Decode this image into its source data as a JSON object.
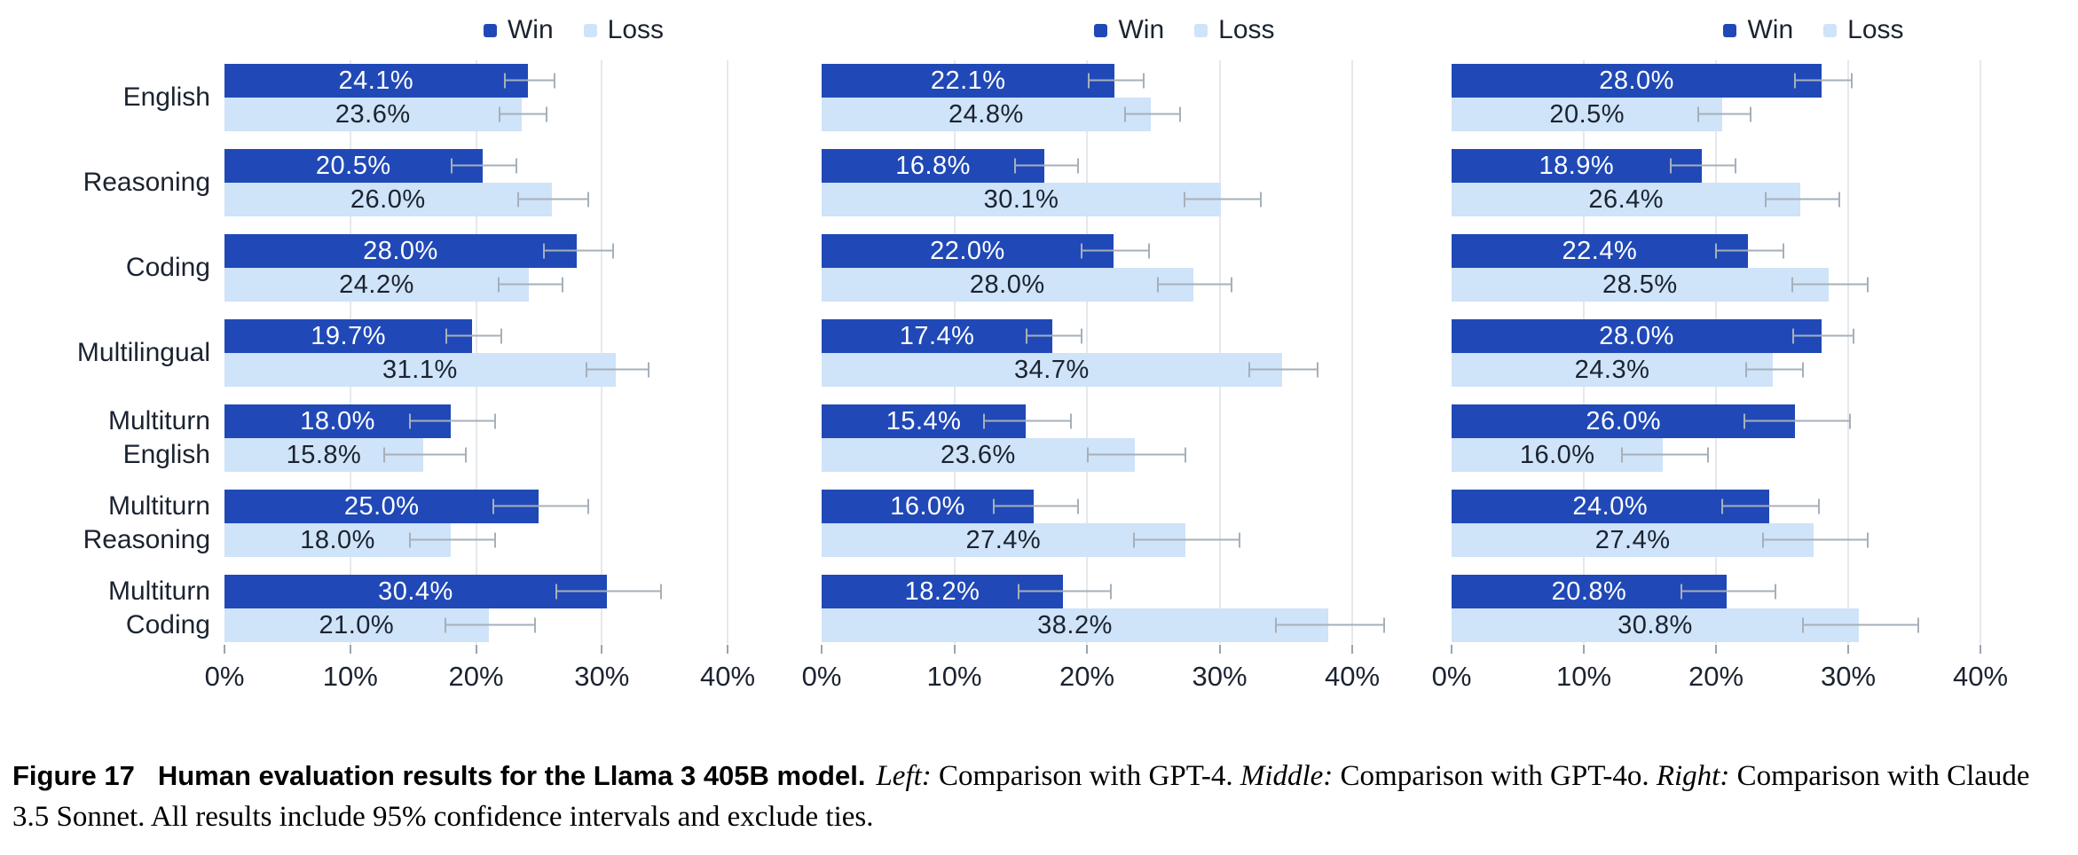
{
  "colors": {
    "win": "#2049b7",
    "loss": "#cfe3f9",
    "error_bar": "#a6b0ba",
    "gridline": "#e5e8ec",
    "text": "#1b2330",
    "value_on_win": "#ffffff",
    "value_on_loss": "#1b2330"
  },
  "figure": {
    "caption": {
      "label": "Figure 17",
      "title": "Human evaluation results for the Llama 3 405B model.",
      "segments": [
        {
          "italic": true,
          "text": "Left:"
        },
        {
          "italic": false,
          "text": " Comparison with GPT-4. "
        },
        {
          "italic": true,
          "text": "Middle:"
        },
        {
          "italic": false,
          "text": " Comparison with GPT-4o. "
        },
        {
          "italic": true,
          "text": "Right:"
        },
        {
          "italic": false,
          "text": " Comparison with Claude 3.5 Sonnet. All results include 95% confidence intervals and exclude ties."
        }
      ]
    }
  },
  "chart_data": [
    {
      "type": "bar",
      "orientation": "horizontal",
      "position": "left",
      "comparison": "GPT-4",
      "legend": [
        "Win",
        "Loss"
      ],
      "legend_position": "top",
      "grid": true,
      "show_category_labels": true,
      "categories": [
        [
          "English"
        ],
        [
          "Reasoning"
        ],
        [
          "Coding"
        ],
        [
          "Multilingual"
        ],
        [
          "Multiturn",
          "English"
        ],
        [
          "Multiturn",
          "Reasoning"
        ],
        [
          "Multiturn",
          "Coding"
        ]
      ],
      "xlim": [
        0,
        40
      ],
      "xticks": [
        0,
        10,
        20,
        30,
        40
      ],
      "xtick_labels": [
        "0%",
        "10%",
        "20%",
        "30%",
        "40%"
      ],
      "series": [
        {
          "name": "Win",
          "values": [
            24.1,
            20.5,
            28.0,
            19.7,
            18.0,
            25.0,
            30.4
          ],
          "ci": [
            1.9,
            2.5,
            2.7,
            2.1,
            3.3,
            3.7,
            4.1
          ]
        },
        {
          "name": "Loss",
          "values": [
            23.6,
            26.0,
            24.2,
            31.1,
            15.8,
            18.0,
            21.0
          ],
          "ci": [
            1.8,
            2.7,
            2.5,
            2.4,
            3.2,
            3.3,
            3.5
          ]
        }
      ]
    },
    {
      "type": "bar",
      "orientation": "horizontal",
      "position": "middle",
      "comparison": "GPT-4o",
      "legend": [
        "Win",
        "Loss"
      ],
      "legend_position": "top",
      "grid": true,
      "show_category_labels": false,
      "categories": [
        [
          "English"
        ],
        [
          "Reasoning"
        ],
        [
          "Coding"
        ],
        [
          "Multilingual"
        ],
        [
          "Multiturn",
          "English"
        ],
        [
          "Multiturn",
          "Reasoning"
        ],
        [
          "Multiturn",
          "Coding"
        ]
      ],
      "xlim": [
        0,
        40
      ],
      "xticks": [
        0,
        10,
        20,
        30,
        40
      ],
      "xtick_labels": [
        "0%",
        "10%",
        "20%",
        "30%",
        "40%"
      ],
      "series": [
        {
          "name": "Win",
          "values": [
            22.1,
            16.8,
            22.0,
            17.4,
            15.4,
            16.0,
            18.2
          ],
          "ci": [
            2.0,
            2.3,
            2.5,
            2.0,
            3.2,
            3.1,
            3.4
          ]
        },
        {
          "name": "Loss",
          "values": [
            24.8,
            30.1,
            28.0,
            34.7,
            23.6,
            27.4,
            38.2
          ],
          "ci": [
            2.0,
            2.8,
            2.7,
            2.5,
            3.6,
            3.9,
            4.0
          ]
        }
      ]
    },
    {
      "type": "bar",
      "orientation": "horizontal",
      "position": "right",
      "comparison": "Claude 3.5 Sonnet",
      "legend": [
        "Win",
        "Loss"
      ],
      "legend_position": "top",
      "grid": true,
      "show_category_labels": false,
      "categories": [
        [
          "English"
        ],
        [
          "Reasoning"
        ],
        [
          "Coding"
        ],
        [
          "Multilingual"
        ],
        [
          "Multiturn",
          "English"
        ],
        [
          "Multiturn",
          "Reasoning"
        ],
        [
          "Multiturn",
          "Coding"
        ]
      ],
      "xlim": [
        0,
        40
      ],
      "xticks": [
        0,
        10,
        20,
        30,
        40
      ],
      "xtick_labels": [
        "0%",
        "10%",
        "20%",
        "30%",
        "40%"
      ],
      "series": [
        {
          "name": "Win",
          "values": [
            28.0,
            18.9,
            22.4,
            28.0,
            26.0,
            24.0,
            20.8
          ],
          "ci": [
            2.1,
            2.4,
            2.5,
            2.2,
            3.9,
            3.6,
            3.5
          ]
        },
        {
          "name": "Loss",
          "values": [
            20.5,
            26.4,
            28.5,
            24.3,
            16.0,
            27.4,
            30.8
          ],
          "ci": [
            1.9,
            2.7,
            2.8,
            2.1,
            3.2,
            3.9,
            4.3
          ]
        }
      ]
    }
  ]
}
